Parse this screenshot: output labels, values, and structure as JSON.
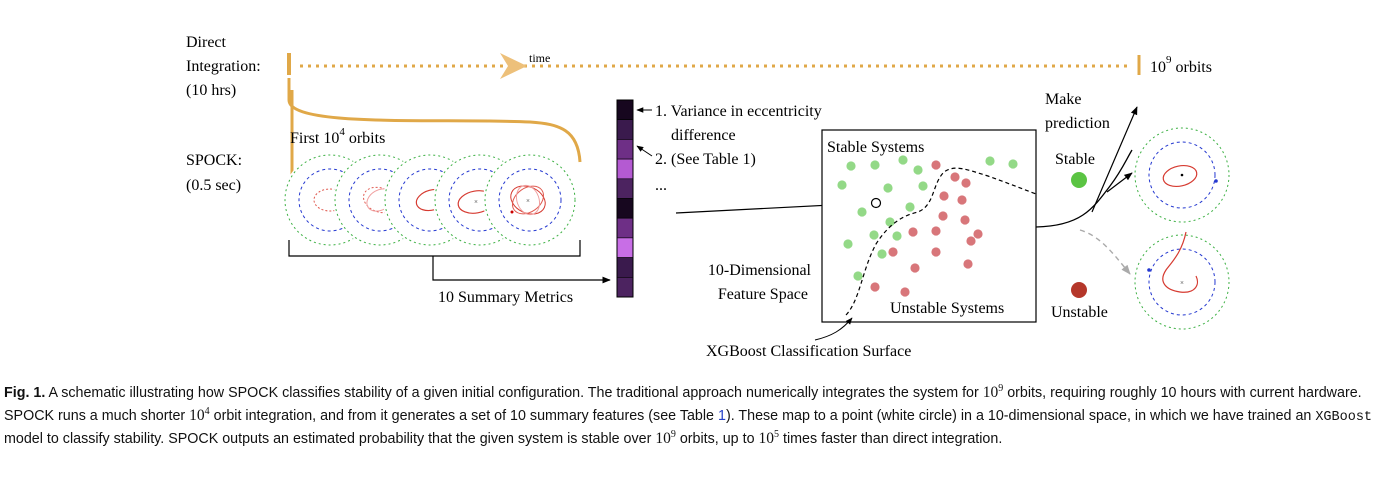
{
  "labels": {
    "direct_integration": [
      "Direct",
      "Integration:",
      "(10 hrs)"
    ],
    "time": "time",
    "orbits_base": "10",
    "orbits_exp": "9",
    "orbits_suffix": "orbits",
    "first_orbits_prefix": "First 10",
    "first_orbits_exp": "4",
    "first_orbits_suffix": "orbits",
    "spock": [
      "SPOCK:",
      "(0.5 sec)"
    ],
    "summary_metrics": "10 Summary Metrics",
    "metric_1_line1": "1. Variance in eccentricity",
    "metric_1_line2": "difference",
    "metric_2": "2. (See Table 1)",
    "ellipsis": "...",
    "stable_systems": "Stable Systems",
    "unstable_systems": "Unstable Systems",
    "feature_space": [
      "10-Dimensional",
      "Feature Space"
    ],
    "xgboost_surface": "XGBoost Classification Surface",
    "make_prediction": [
      "Make",
      "prediction"
    ],
    "stable": "Stable",
    "unstable": "Unstable"
  },
  "metric_colors": [
    "#17071f",
    "#3a1a4d",
    "#6e2f86",
    "#b45ad2",
    "#4c2360",
    "#17071f",
    "#6e2f86",
    "#c86ee6",
    "#3a1a4d",
    "#4c2360"
  ],
  "colors": {
    "timeline": "#e0a848",
    "stable_point": "#93d987",
    "unstable_point": "#d8767a",
    "stable_dot": "#5bc443",
    "unstable_dot": "#b5372a",
    "predict_dashed": "#aaaaaa"
  },
  "caption": {
    "fig_label": "Fig. 1.",
    "parts": [
      " A schematic illustrating how SPOCK classifies stability of a given initial configuration. The traditional approach numerically integrates the system for ",
      " orbits, requiring roughly 10 hours with current hardware. SPOCK runs a much shorter ",
      " orbit integration, and from it generates a set of 10 summary features (see Table ",
      "). These map to a point (white circle) in a 10-dimensional space, in which we have trained an ",
      " model to classify stability. SPOCK outputs an estimated probability that the given system is stable over ",
      " orbits, up to ",
      " times faster than direct integration."
    ],
    "math_base": "10",
    "exp_9": "9",
    "exp_4": "4",
    "exp_5": "5",
    "table_ref": "1",
    "xgboost": "XGBoost"
  }
}
